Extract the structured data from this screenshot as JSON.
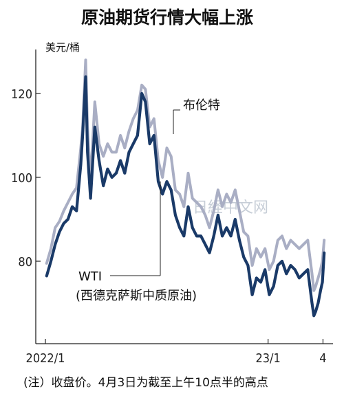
{
  "chart_data": {
    "type": "line",
    "title": "原油期货行情大幅上涨",
    "ylabel": "美元/桶",
    "ylim": [
      60,
      130
    ],
    "yticks": [
      80,
      100,
      120
    ],
    "xlim": [
      "2022-01-01",
      "2023-04-05"
    ],
    "xticks": [
      {
        "date": "2022-01-01",
        "label": "2022/1"
      },
      {
        "date": "2023-01-01",
        "label": "23/1"
      },
      {
        "date": "2023-04-01",
        "label": "4"
      }
    ],
    "series": [
      {
        "name": "布伦特",
        "color": "#a9aec4",
        "x": [
          "2022-01-03",
          "2022-01-10",
          "2022-01-17",
          "2022-01-24",
          "2022-01-31",
          "2022-02-07",
          "2022-02-14",
          "2022-02-21",
          "2022-02-28",
          "2022-03-03",
          "2022-03-08",
          "2022-03-11",
          "2022-03-16",
          "2022-03-23",
          "2022-03-30",
          "2022-04-06",
          "2022-04-13",
          "2022-04-20",
          "2022-04-27",
          "2022-05-04",
          "2022-05-11",
          "2022-05-18",
          "2022-05-25",
          "2022-06-01",
          "2022-06-08",
          "2022-06-14",
          "2022-06-21",
          "2022-06-28",
          "2022-07-05",
          "2022-07-12",
          "2022-07-19",
          "2022-07-26",
          "2022-08-02",
          "2022-08-09",
          "2022-08-16",
          "2022-08-23",
          "2022-08-30",
          "2022-09-06",
          "2022-09-13",
          "2022-09-20",
          "2022-09-27",
          "2022-10-04",
          "2022-10-11",
          "2022-10-18",
          "2022-10-25",
          "2022-11-01",
          "2022-11-08",
          "2022-11-15",
          "2022-11-22",
          "2022-11-29",
          "2022-12-06",
          "2022-12-13",
          "2022-12-20",
          "2022-12-27",
          "2023-01-03",
          "2023-01-10",
          "2023-01-17",
          "2023-01-24",
          "2023-01-31",
          "2023-02-07",
          "2023-02-14",
          "2023-02-21",
          "2023-02-28",
          "2023-03-07",
          "2023-03-14",
          "2023-03-17",
          "2023-03-20",
          "2023-03-24",
          "2023-03-28",
          "2023-03-31",
          "2023-04-03"
        ],
        "values": [
          79.5,
          83,
          88,
          89.5,
          92,
          94,
          96,
          97.5,
          107,
          112,
          128,
          112,
          99,
          118,
          108,
          105,
          108,
          106,
          106,
          110,
          107,
          111,
          114,
          116,
          122,
          121,
          112,
          114,
          104,
          100,
          107,
          105,
          97,
          96,
          93,
          101,
          95,
          94,
          93,
          91,
          88,
          92,
          97,
          93,
          96,
          94,
          97,
          92,
          87,
          86,
          79,
          83,
          81,
          83,
          78,
          80,
          85,
          86,
          83,
          85,
          84,
          83,
          84,
          85,
          77,
          73,
          74,
          76,
          78,
          80,
          85
        ]
      },
      {
        "name": "WTI",
        "color": "#1a3a68",
        "x": [
          "2022-01-03",
          "2022-01-10",
          "2022-01-17",
          "2022-01-24",
          "2022-01-31",
          "2022-02-07",
          "2022-02-14",
          "2022-02-21",
          "2022-02-28",
          "2022-03-03",
          "2022-03-08",
          "2022-03-11",
          "2022-03-16",
          "2022-03-23",
          "2022-03-30",
          "2022-04-06",
          "2022-04-13",
          "2022-04-20",
          "2022-04-27",
          "2022-05-04",
          "2022-05-11",
          "2022-05-18",
          "2022-05-25",
          "2022-06-01",
          "2022-06-08",
          "2022-06-14",
          "2022-06-21",
          "2022-06-28",
          "2022-07-05",
          "2022-07-12",
          "2022-07-19",
          "2022-07-26",
          "2022-08-02",
          "2022-08-09",
          "2022-08-16",
          "2022-08-23",
          "2022-08-30",
          "2022-09-06",
          "2022-09-13",
          "2022-09-20",
          "2022-09-27",
          "2022-10-04",
          "2022-10-11",
          "2022-10-18",
          "2022-10-25",
          "2022-11-01",
          "2022-11-08",
          "2022-11-15",
          "2022-11-22",
          "2022-11-29",
          "2022-12-06",
          "2022-12-13",
          "2022-12-20",
          "2022-12-27",
          "2023-01-03",
          "2023-01-10",
          "2023-01-17",
          "2023-01-24",
          "2023-01-31",
          "2023-02-07",
          "2023-02-14",
          "2023-02-21",
          "2023-02-28",
          "2023-03-07",
          "2023-03-14",
          "2023-03-17",
          "2023-03-20",
          "2023-03-24",
          "2023-03-28",
          "2023-03-31",
          "2023-04-03"
        ],
        "values": [
          76.5,
          80,
          84,
          87,
          89,
          90,
          93,
          92,
          103,
          110,
          124,
          106,
          95,
          112,
          104,
          98,
          102,
          100,
          101,
          104,
          101,
          106,
          108,
          110,
          120,
          118,
          108,
          110,
          99,
          96,
          99,
          97,
          91,
          88,
          86,
          93,
          88,
          86,
          86,
          84,
          82,
          86,
          91,
          86,
          88,
          86,
          90,
          85,
          81,
          79,
          72,
          76,
          75,
          78,
          72,
          74,
          79,
          80,
          77,
          79,
          78,
          76,
          77,
          78,
          70,
          67,
          68,
          70,
          73,
          75,
          82
        ]
      }
    ],
    "annotations": [
      {
        "text": "布伦特",
        "series": "布伦特"
      },
      {
        "text": "WTI",
        "series": "WTI"
      },
      {
        "text": "(西德克萨斯中质原油)",
        "series": "WTI"
      }
    ],
    "note": "(注）收盘价。4月3日为截至上午10点半的高点",
    "watermark": "日経中文网",
    "grid": false,
    "legend": "none"
  }
}
